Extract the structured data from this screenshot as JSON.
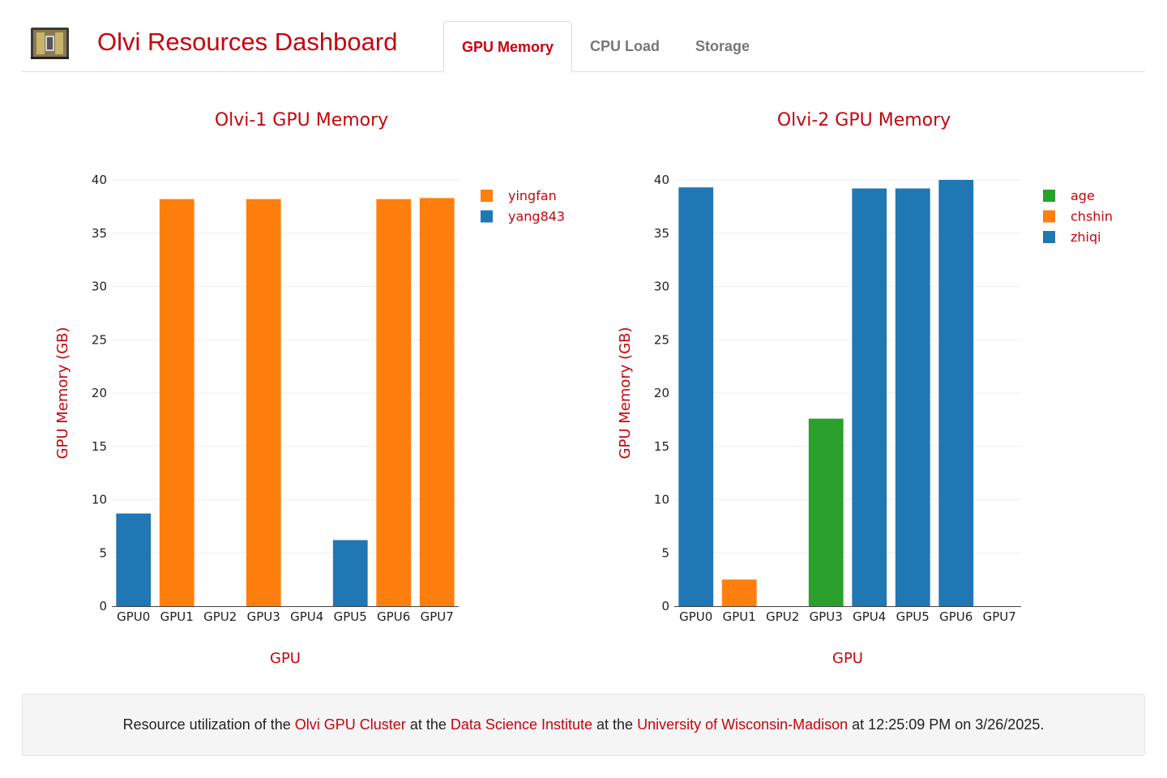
{
  "header": {
    "title": "Olvi Resources Dashboard",
    "tabs": [
      {
        "label": "GPU Memory",
        "active": true
      },
      {
        "label": "CPU Load",
        "active": false
      },
      {
        "label": "Storage",
        "active": false
      }
    ]
  },
  "colors": {
    "accent": "#c5050c",
    "series": {
      "yingfan": "#ff7f0e",
      "yang843": "#1f77b4",
      "age": "#2ca02c",
      "chshin": "#ff7f0e",
      "zhiqi": "#1f77b4"
    }
  },
  "chart_data": [
    {
      "type": "bar",
      "title": "Olvi-1 GPU Memory",
      "xlabel": "GPU",
      "ylabel": "GPU Memory (GB)",
      "categories": [
        "GPU0",
        "GPU1",
        "GPU2",
        "GPU3",
        "GPU4",
        "GPU5",
        "GPU6",
        "GPU7"
      ],
      "ylim": [
        0,
        40
      ],
      "yticks": [
        0,
        5,
        10,
        15,
        20,
        25,
        30,
        35,
        40
      ],
      "grid": true,
      "legend_position": "top-right",
      "series": [
        {
          "name": "yingfan",
          "color": "#ff7f0e",
          "values": [
            null,
            38.2,
            null,
            38.2,
            null,
            null,
            38.2,
            38.3
          ]
        },
        {
          "name": "yang843",
          "color": "#1f77b4",
          "values": [
            8.7,
            null,
            null,
            null,
            null,
            6.2,
            null,
            null
          ]
        }
      ]
    },
    {
      "type": "bar",
      "title": "Olvi-2 GPU Memory",
      "xlabel": "GPU",
      "ylabel": "GPU Memory (GB)",
      "categories": [
        "GPU0",
        "GPU1",
        "GPU2",
        "GPU3",
        "GPU4",
        "GPU5",
        "GPU6",
        "GPU7"
      ],
      "ylim": [
        0,
        40
      ],
      "yticks": [
        0,
        5,
        10,
        15,
        20,
        25,
        30,
        35,
        40
      ],
      "grid": true,
      "legend_position": "top-right",
      "series": [
        {
          "name": "age",
          "color": "#2ca02c",
          "values": [
            null,
            null,
            null,
            17.6,
            null,
            null,
            null,
            null
          ]
        },
        {
          "name": "chshin",
          "color": "#ff7f0e",
          "values": [
            null,
            2.5,
            null,
            null,
            null,
            null,
            null,
            null
          ]
        },
        {
          "name": "zhiqi",
          "color": "#1f77b4",
          "values": [
            39.3,
            null,
            null,
            null,
            39.2,
            39.2,
            40.0,
            null
          ]
        }
      ]
    }
  ],
  "footer": {
    "prefix": "Resource utilization of the",
    "link1": "Olvi GPU Cluster",
    "mid1": "at the",
    "link2": "Data Science Institute",
    "mid2": "at the",
    "link3": "University of Wisconsin-Madison",
    "suffix": "at 12:25:09 PM on 3/26/2025."
  }
}
